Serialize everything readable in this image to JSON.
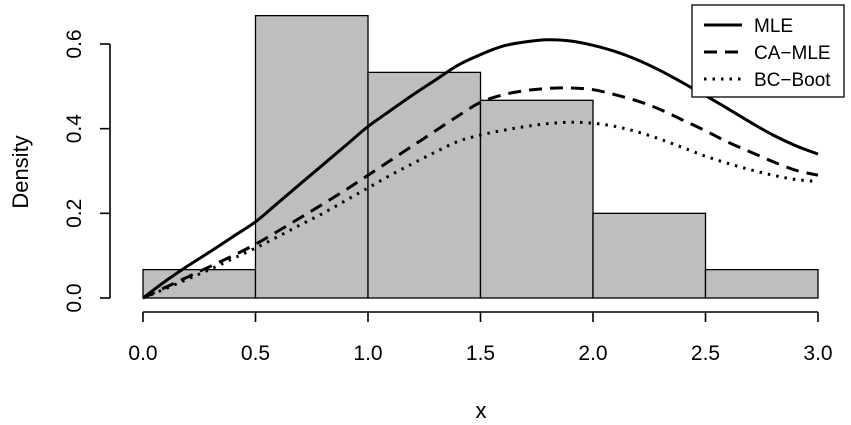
{
  "chart_data": {
    "type": "histogram",
    "title": "",
    "xlabel": "x",
    "ylabel": "Density",
    "xlim": [
      0,
      3
    ],
    "ylim": [
      0,
      0.6
    ],
    "xticks": [
      "0.0",
      "0.5",
      "1.0",
      "1.5",
      "2.0",
      "2.5",
      "3.0"
    ],
    "yticks": [
      "0.0",
      "0.2",
      "0.4",
      "0.6"
    ],
    "bins": [
      {
        "from": 0.0,
        "to": 0.5,
        "density": 0.067
      },
      {
        "from": 0.5,
        "to": 1.0,
        "density": 0.667
      },
      {
        "from": 1.0,
        "to": 1.5,
        "density": 0.533
      },
      {
        "from": 1.5,
        "to": 2.0,
        "density": 0.467
      },
      {
        "from": 2.0,
        "to": 2.5,
        "density": 0.2
      },
      {
        "from": 2.5,
        "to": 3.0,
        "density": 0.067
      }
    ],
    "series": [
      {
        "name": "MLE",
        "line_style": "solid",
        "x": [
          0.0,
          0.1,
          0.2,
          0.3,
          0.4,
          0.5,
          0.6,
          0.7,
          0.8,
          0.9,
          1.0,
          1.1,
          1.2,
          1.3,
          1.4,
          1.5,
          1.6,
          1.7,
          1.8,
          1.9,
          2.0,
          2.1,
          2.2,
          2.3,
          2.4,
          2.5,
          2.6,
          2.7,
          2.8,
          2.9,
          3.0
        ],
        "y": [
          0.0,
          0.04,
          0.076,
          0.11,
          0.145,
          0.18,
          0.225,
          0.27,
          0.315,
          0.36,
          0.405,
          0.443,
          0.48,
          0.515,
          0.55,
          0.575,
          0.595,
          0.605,
          0.61,
          0.607,
          0.597,
          0.582,
          0.562,
          0.537,
          0.508,
          0.478,
          0.447,
          0.415,
          0.385,
          0.36,
          0.34
        ]
      },
      {
        "name": "CA−MLE",
        "line_style": "dashed",
        "x": [
          0.0,
          0.1,
          0.2,
          0.3,
          0.4,
          0.5,
          0.6,
          0.7,
          0.8,
          0.9,
          1.0,
          1.1,
          1.2,
          1.3,
          1.4,
          1.5,
          1.6,
          1.7,
          1.8,
          1.9,
          2.0,
          2.1,
          2.2,
          2.3,
          2.4,
          2.5,
          2.6,
          2.7,
          2.8,
          2.9,
          3.0
        ],
        "y": [
          0.0,
          0.025,
          0.05,
          0.075,
          0.1,
          0.127,
          0.158,
          0.19,
          0.222,
          0.255,
          0.29,
          0.325,
          0.36,
          0.395,
          0.43,
          0.462,
          0.48,
          0.49,
          0.495,
          0.496,
          0.492,
          0.48,
          0.465,
          0.445,
          0.42,
          0.395,
          0.368,
          0.345,
          0.322,
          0.302,
          0.29
        ]
      },
      {
        "name": "BC−Boot",
        "line_style": "dotted",
        "x": [
          0.0,
          0.1,
          0.2,
          0.3,
          0.4,
          0.5,
          0.6,
          0.7,
          0.8,
          0.9,
          1.0,
          1.1,
          1.2,
          1.3,
          1.4,
          1.5,
          1.6,
          1.7,
          1.8,
          1.9,
          2.0,
          2.1,
          2.2,
          2.3,
          2.4,
          2.5,
          2.6,
          2.7,
          2.8,
          2.9,
          3.0
        ],
        "y": [
          0.0,
          0.022,
          0.045,
          0.068,
          0.093,
          0.118,
          0.145,
          0.173,
          0.2,
          0.23,
          0.26,
          0.29,
          0.318,
          0.345,
          0.37,
          0.385,
          0.396,
          0.405,
          0.412,
          0.415,
          0.413,
          0.405,
          0.392,
          0.375,
          0.355,
          0.335,
          0.318,
          0.303,
          0.29,
          0.28,
          0.275
        ]
      }
    ],
    "legend": {
      "position": "top-right",
      "entries": [
        "MLE",
        "CA−MLE",
        "BC−Boot"
      ]
    },
    "grid": false
  }
}
